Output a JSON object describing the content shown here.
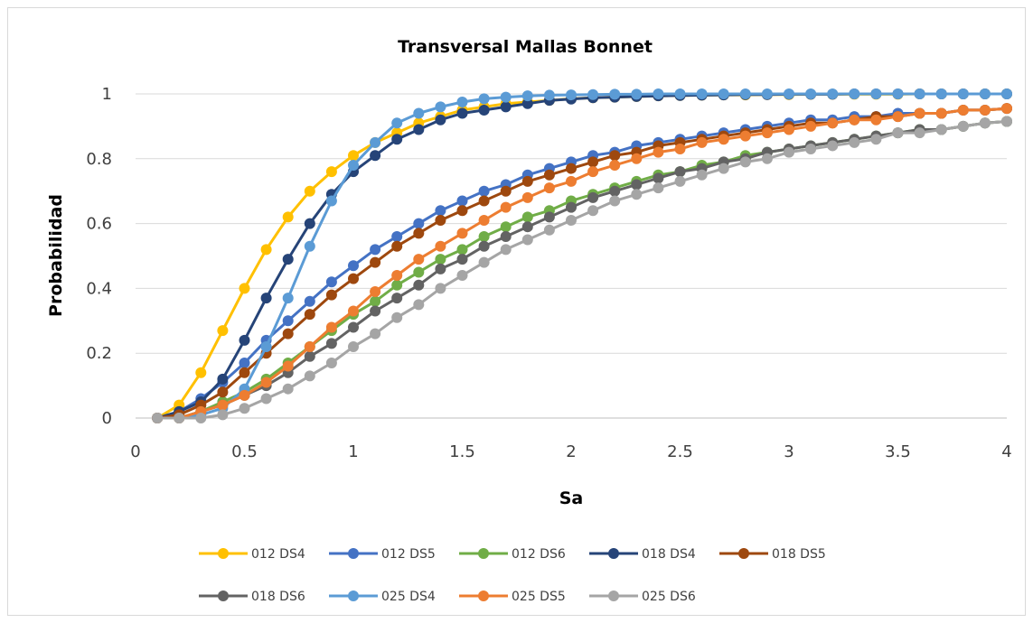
{
  "chart_data": {
    "type": "line",
    "title": "Transversal Mallas Bonnet",
    "xlabel": "Sa",
    "ylabel": "Probabilidad",
    "xlim": [
      0,
      4
    ],
    "ylim": [
      0,
      1
    ],
    "xticks": [
      "0",
      "0.5",
      "1",
      "1.5",
      "2",
      "2.5",
      "3",
      "3.5",
      "4"
    ],
    "yticks": [
      "0",
      "0.2",
      "0.4",
      "0.6",
      "0.8",
      "1"
    ],
    "grid": "horizontal",
    "legend_position": "bottom",
    "x": [
      0.1,
      0.2,
      0.3,
      0.4,
      0.5,
      0.6,
      0.7,
      0.8,
      0.9,
      1.0,
      1.1,
      1.2,
      1.3,
      1.4,
      1.5,
      1.6,
      1.7,
      1.8,
      1.9,
      2.0,
      2.1,
      2.2,
      2.3,
      2.4,
      2.5,
      2.6,
      2.7,
      2.8,
      2.9,
      3.0,
      3.1,
      3.2,
      3.3,
      3.4,
      3.5,
      3.6,
      3.7,
      3.8,
      3.9,
      4.0
    ],
    "series": [
      {
        "name": "012 DS4",
        "color": "#ffc000",
        "values": [
          0.0,
          0.04,
          0.14,
          0.27,
          0.4,
          0.52,
          0.62,
          0.7,
          0.76,
          0.81,
          0.85,
          0.88,
          0.91,
          0.93,
          0.95,
          0.96,
          0.97,
          0.975,
          0.98,
          0.985,
          0.988,
          0.99,
          0.992,
          0.994,
          0.995,
          0.996,
          0.997,
          0.997,
          0.998,
          0.998,
          0.999,
          0.999,
          0.999,
          0.999,
          0.999,
          1.0,
          1.0,
          1.0,
          1.0,
          1.0
        ]
      },
      {
        "name": "012 DS5",
        "color": "#4472c4",
        "values": [
          0.0,
          0.02,
          0.06,
          0.11,
          0.17,
          0.24,
          0.3,
          0.36,
          0.42,
          0.47,
          0.52,
          0.56,
          0.6,
          0.64,
          0.67,
          0.7,
          0.72,
          0.75,
          0.77,
          0.79,
          0.81,
          0.82,
          0.84,
          0.85,
          0.86,
          0.87,
          0.88,
          0.89,
          0.9,
          0.91,
          0.92,
          0.92,
          0.93,
          0.93,
          0.94,
          0.94,
          0.94,
          0.95,
          0.95,
          0.955
        ]
      },
      {
        "name": "012 DS6",
        "color": "#70ad47",
        "values": [
          0.0,
          0.0,
          0.02,
          0.05,
          0.08,
          0.12,
          0.17,
          0.22,
          0.27,
          0.32,
          0.36,
          0.41,
          0.45,
          0.49,
          0.52,
          0.56,
          0.59,
          0.62,
          0.64,
          0.67,
          0.69,
          0.71,
          0.73,
          0.75,
          0.76,
          0.78,
          0.79,
          0.81,
          0.82,
          0.83,
          0.84,
          0.85,
          0.86,
          0.87,
          0.88,
          0.89,
          0.89,
          0.9,
          0.91,
          0.915
        ]
      },
      {
        "name": "018 DS4",
        "color": "#264478",
        "values": [
          0.0,
          0.02,
          0.05,
          0.12,
          0.24,
          0.37,
          0.49,
          0.6,
          0.69,
          0.76,
          0.81,
          0.86,
          0.89,
          0.92,
          0.94,
          0.95,
          0.96,
          0.97,
          0.98,
          0.984,
          0.988,
          0.99,
          0.992,
          0.994,
          0.995,
          0.996,
          0.997,
          0.998,
          0.998,
          0.999,
          0.999,
          0.999,
          1.0,
          1.0,
          1.0,
          1.0,
          1.0,
          1.0,
          1.0,
          1.0
        ]
      },
      {
        "name": "018 DS5",
        "color": "#9e480e",
        "values": [
          0.0,
          0.01,
          0.04,
          0.08,
          0.14,
          0.2,
          0.26,
          0.32,
          0.38,
          0.43,
          0.48,
          0.53,
          0.57,
          0.61,
          0.64,
          0.67,
          0.7,
          0.73,
          0.75,
          0.77,
          0.79,
          0.81,
          0.82,
          0.84,
          0.85,
          0.86,
          0.87,
          0.88,
          0.89,
          0.9,
          0.91,
          0.91,
          0.92,
          0.93,
          0.93,
          0.94,
          0.94,
          0.95,
          0.95,
          0.955
        ]
      },
      {
        "name": "018 DS6",
        "color": "#636363",
        "values": [
          0.0,
          0.0,
          0.02,
          0.04,
          0.07,
          0.1,
          0.14,
          0.19,
          0.23,
          0.28,
          0.33,
          0.37,
          0.41,
          0.46,
          0.49,
          0.53,
          0.56,
          0.59,
          0.62,
          0.65,
          0.68,
          0.7,
          0.72,
          0.74,
          0.76,
          0.77,
          0.79,
          0.8,
          0.82,
          0.83,
          0.84,
          0.85,
          0.86,
          0.87,
          0.88,
          0.89,
          0.89,
          0.9,
          0.91,
          0.915
        ]
      },
      {
        "name": "025 DS4",
        "color": "#5b9bd5",
        "values": [
          0.0,
          0.0,
          0.01,
          0.03,
          0.09,
          0.22,
          0.37,
          0.53,
          0.67,
          0.78,
          0.85,
          0.91,
          0.94,
          0.96,
          0.975,
          0.985,
          0.99,
          0.994,
          0.996,
          0.997,
          0.998,
          0.999,
          0.999,
          1.0,
          1.0,
          1.0,
          1.0,
          1.0,
          1.0,
          1.0,
          1.0,
          1.0,
          1.0,
          1.0,
          1.0,
          1.0,
          1.0,
          1.0,
          1.0,
          1.0
        ]
      },
      {
        "name": "025 DS5",
        "color": "#ed7d31",
        "values": [
          0.0,
          0.0,
          0.02,
          0.04,
          0.07,
          0.11,
          0.16,
          0.22,
          0.28,
          0.33,
          0.39,
          0.44,
          0.49,
          0.53,
          0.57,
          0.61,
          0.65,
          0.68,
          0.71,
          0.73,
          0.76,
          0.78,
          0.8,
          0.82,
          0.83,
          0.85,
          0.86,
          0.87,
          0.88,
          0.89,
          0.9,
          0.91,
          0.92,
          0.92,
          0.93,
          0.94,
          0.94,
          0.95,
          0.95,
          0.955
        ]
      },
      {
        "name": "025 DS6",
        "color": "#a5a5a5",
        "values": [
          0.0,
          0.0,
          0.0,
          0.01,
          0.03,
          0.06,
          0.09,
          0.13,
          0.17,
          0.22,
          0.26,
          0.31,
          0.35,
          0.4,
          0.44,
          0.48,
          0.52,
          0.55,
          0.58,
          0.61,
          0.64,
          0.67,
          0.69,
          0.71,
          0.73,
          0.75,
          0.77,
          0.79,
          0.8,
          0.82,
          0.83,
          0.84,
          0.85,
          0.86,
          0.88,
          0.88,
          0.89,
          0.9,
          0.91,
          0.915
        ]
      }
    ]
  }
}
